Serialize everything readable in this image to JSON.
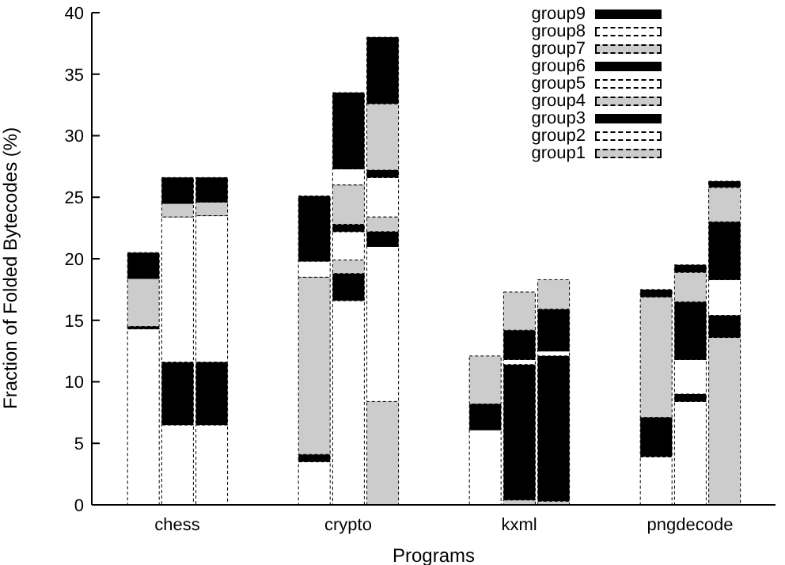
{
  "chart_data": {
    "type": "bar",
    "stacked": true,
    "xlabel": "Programs",
    "ylabel": "Fraction of Folded Bytecodes (%)",
    "categories": [
      null,
      null,
      "chess",
      null,
      null,
      null,
      null,
      "crypto",
      null,
      null,
      null,
      null,
      "kxml",
      null,
      null,
      null,
      null,
      "pngdecode",
      null,
      null
    ],
    "ylim": [
      0,
      40
    ],
    "yticks": [
      0,
      5,
      10,
      15,
      20,
      25,
      30,
      35,
      40
    ],
    "grid": false,
    "legend": "top right",
    "series": [
      {
        "name": "group1",
        "color": "#cccccc",
        "values": [
          null,
          0,
          0,
          0,
          null,
          null,
          0,
          0,
          8.4,
          null,
          null,
          0,
          0.4,
          0.3,
          null,
          null,
          0,
          0,
          13.6,
          null
        ]
      },
      {
        "name": "group2",
        "color": "#ffffff",
        "values": [
          null,
          14.3,
          6.5,
          6.5,
          null,
          null,
          3.5,
          16.6,
          12.6,
          null,
          null,
          6.1,
          0,
          0,
          null,
          null,
          3.9,
          8.4,
          0,
          null
        ]
      },
      {
        "name": "group3",
        "color": "#000000",
        "values": [
          null,
          0.2,
          5.1,
          5.1,
          null,
          null,
          0.6,
          2.2,
          1.2,
          null,
          null,
          2.1,
          11,
          11.8,
          null,
          null,
          3.2,
          0.6,
          1.8,
          null
        ]
      },
      {
        "name": "group4",
        "color": "#cccccc",
        "values": [
          null,
          3.9,
          0,
          0,
          null,
          null,
          14.4,
          1.1,
          1.2,
          null,
          null,
          3.9,
          0,
          0,
          null,
          null,
          9.8,
          0,
          0,
          null
        ]
      },
      {
        "name": "group5",
        "color": "#ffffff",
        "values": [
          null,
          0,
          11.8,
          11.9,
          null,
          null,
          1.3,
          2.3,
          3.2,
          null,
          null,
          0,
          0.4,
          0.4,
          null,
          null,
          0,
          2.8,
          2.9,
          null
        ]
      },
      {
        "name": "group6",
        "color": "#000000",
        "values": [
          null,
          0,
          0,
          0,
          null,
          null,
          0,
          0.6,
          0.6,
          null,
          null,
          0,
          2.4,
          3.4,
          null,
          null,
          0,
          4.7,
          4.7,
          null
        ]
      },
      {
        "name": "group7",
        "color": "#cccccc",
        "values": [
          null,
          0,
          1.1,
          1.1,
          null,
          null,
          0,
          3.2,
          5.4,
          null,
          null,
          0,
          3.1,
          2.4,
          null,
          null,
          0,
          2.4,
          2.8,
          null
        ]
      },
      {
        "name": "group8",
        "color": "#ffffff",
        "values": [
          null,
          0,
          0,
          0,
          null,
          null,
          0,
          1.3,
          0,
          null,
          null,
          0,
          0,
          0,
          null,
          null,
          0,
          0,
          0,
          null
        ]
      },
      {
        "name": "group9",
        "color": "#000000",
        "values": [
          null,
          2.1,
          2.1,
          2.0,
          null,
          null,
          5.3,
          6.2,
          5.4,
          null,
          null,
          0,
          0,
          0,
          null,
          null,
          0.6,
          0.6,
          0.5,
          null
        ]
      }
    ]
  }
}
